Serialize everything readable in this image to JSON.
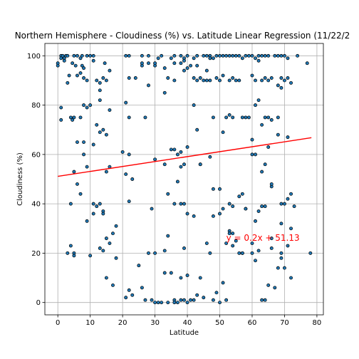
{
  "chart_data": {
    "type": "scatter",
    "title": "Northern Hemisphere - Cloudiness (%) vs. Latitude Linear Regression (11/22/2",
    "xlabel": "Latitude",
    "ylabel": "Cloudiness (%)",
    "xlim": [
      -4,
      82
    ],
    "ylim": [
      -5,
      105
    ],
    "xticks": [
      0,
      10,
      20,
      30,
      40,
      50,
      60,
      70,
      80
    ],
    "yticks": [
      0,
      20,
      40,
      60,
      80,
      100
    ],
    "grid": true,
    "point_color": "#1f77b4",
    "point_edge_color": "#000000",
    "regression_line": {
      "slope": 0.2,
      "intercept": 51.13,
      "x_range": [
        0,
        78.3
      ],
      "color": "#ff0000"
    },
    "annotation": {
      "text": "y = 0.2x + 51.13",
      "x": 52,
      "y": 25,
      "color": "#ff0000"
    },
    "points": [
      [
        0,
        97
      ],
      [
        0,
        96
      ],
      [
        1,
        100
      ],
      [
        1,
        99
      ],
      [
        1.5,
        100
      ],
      [
        2,
        99
      ],
      [
        2.5,
        100
      ],
      [
        3,
        100
      ],
      [
        5,
        100
      ],
      [
        6,
        100
      ],
      [
        7,
        99
      ],
      [
        7.5,
        100
      ],
      [
        10,
        100
      ],
      [
        11,
        98
      ],
      [
        21,
        100
      ],
      [
        22,
        100
      ],
      [
        26,
        100
      ],
      [
        28,
        100
      ],
      [
        32,
        100
      ],
      [
        36,
        100
      ],
      [
        38,
        100
      ],
      [
        40,
        100
      ],
      [
        42,
        99
      ],
      [
        43,
        100
      ],
      [
        45,
        100
      ],
      [
        46,
        100
      ],
      [
        47,
        100
      ],
      [
        48,
        99
      ],
      [
        49,
        100
      ],
      [
        50,
        100
      ],
      [
        51,
        100
      ],
      [
        52,
        100
      ],
      [
        53,
        100
      ],
      [
        54,
        100
      ],
      [
        55,
        100
      ],
      [
        56,
        100
      ],
      [
        58,
        100
      ],
      [
        60,
        100
      ],
      [
        61,
        99
      ],
      [
        62,
        100
      ],
      [
        63,
        100
      ],
      [
        64,
        100
      ],
      [
        65,
        100
      ],
      [
        67,
        100
      ],
      [
        68,
        100
      ],
      [
        69,
        100
      ],
      [
        70,
        100
      ],
      [
        71,
        99
      ],
      [
        74,
        100
      ],
      [
        2,
        98
      ],
      [
        3.5,
        92
      ],
      [
        4.5,
        97
      ],
      [
        5.5,
        96
      ],
      [
        6,
        92
      ],
      [
        7,
        93
      ],
      [
        7.5,
        96
      ],
      [
        8,
        95
      ],
      [
        8,
        91
      ],
      [
        9,
        100
      ],
      [
        9,
        90
      ],
      [
        12,
        90
      ],
      [
        13,
        89
      ],
      [
        14,
        91
      ],
      [
        14.5,
        97
      ],
      [
        15,
        90
      ],
      [
        16,
        94
      ],
      [
        22,
        91
      ],
      [
        24,
        91
      ],
      [
        26,
        96
      ],
      [
        28,
        97
      ],
      [
        30,
        96
      ],
      [
        31,
        99
      ],
      [
        33,
        95
      ],
      [
        34,
        91
      ],
      [
        36,
        97
      ],
      [
        38,
        97
      ],
      [
        39,
        99
      ],
      [
        39,
        94
      ],
      [
        41,
        96
      ],
      [
        42,
        91
      ],
      [
        43,
        90
      ],
      [
        44,
        91
      ],
      [
        45,
        90
      ],
      [
        46,
        94
      ],
      [
        47,
        99
      ],
      [
        49,
        91
      ],
      [
        50,
        90
      ],
      [
        51,
        92
      ],
      [
        53,
        90
      ],
      [
        54,
        91
      ],
      [
        55,
        90
      ],
      [
        56,
        90
      ],
      [
        57,
        99
      ],
      [
        59,
        100
      ],
      [
        60,
        92
      ],
      [
        61,
        90
      ],
      [
        62,
        98
      ],
      [
        63,
        90
      ],
      [
        64,
        91
      ],
      [
        65,
        90
      ],
      [
        66,
        91
      ],
      [
        68,
        88
      ],
      [
        69,
        91
      ],
      [
        70,
        90
      ],
      [
        71,
        91
      ],
      [
        72,
        89
      ],
      [
        77,
        97
      ],
      [
        43,
        96
      ],
      [
        35,
        99
      ],
      [
        3,
        89
      ],
      [
        7,
        75
      ],
      [
        8,
        80
      ],
      [
        9,
        79
      ],
      [
        10,
        80
      ],
      [
        11,
        100
      ],
      [
        13,
        82
      ],
      [
        13,
        86
      ],
      [
        14,
        70
      ],
      [
        16,
        78
      ],
      [
        21,
        81
      ],
      [
        22,
        75
      ],
      [
        26,
        97
      ],
      [
        27,
        75
      ],
      [
        28,
        88
      ],
      [
        30,
        97
      ],
      [
        33,
        85
      ],
      [
        36,
        90
      ],
      [
        39,
        98
      ],
      [
        40,
        95
      ],
      [
        42,
        80
      ],
      [
        43,
        70
      ],
      [
        46,
        90
      ],
      [
        47,
        90
      ],
      [
        48,
        75
      ],
      [
        52,
        75
      ],
      [
        53,
        76
      ],
      [
        54,
        75
      ],
      [
        57,
        75
      ],
      [
        58,
        75
      ],
      [
        59,
        75
      ],
      [
        61,
        80
      ],
      [
        62,
        82
      ],
      [
        63,
        72
      ],
      [
        64,
        75
      ],
      [
        65,
        75
      ],
      [
        66,
        74
      ],
      [
        68,
        75
      ],
      [
        69,
        87
      ],
      [
        71,
        67
      ],
      [
        1,
        74
      ],
      [
        1,
        79
      ],
      [
        4,
        75
      ],
      [
        4.5,
        74
      ],
      [
        5,
        75
      ],
      [
        6,
        65
      ],
      [
        8,
        65
      ],
      [
        8,
        60
      ],
      [
        9,
        55
      ],
      [
        11,
        64
      ],
      [
        12,
        72
      ],
      [
        13,
        69
      ],
      [
        15,
        68
      ],
      [
        16,
        55
      ],
      [
        20,
        61
      ],
      [
        22,
        60
      ],
      [
        30,
        58
      ],
      [
        36,
        62
      ],
      [
        37,
        60
      ],
      [
        38,
        61
      ],
      [
        38,
        55
      ],
      [
        39,
        56
      ],
      [
        40,
        63
      ],
      [
        44,
        56
      ],
      [
        47,
        59
      ],
      [
        48,
        46
      ],
      [
        50,
        46
      ],
      [
        51,
        69
      ],
      [
        53,
        40
      ],
      [
        54,
        39
      ],
      [
        56,
        43
      ],
      [
        57,
        44
      ],
      [
        58,
        38
      ],
      [
        60,
        60
      ],
      [
        60,
        66
      ],
      [
        61,
        60
      ],
      [
        63,
        53
      ],
      [
        64,
        56
      ],
      [
        65,
        63
      ],
      [
        66,
        47
      ],
      [
        66,
        48
      ],
      [
        68,
        68
      ],
      [
        69,
        40
      ],
      [
        70,
        40
      ],
      [
        71,
        42
      ],
      [
        72,
        44
      ],
      [
        73,
        39
      ],
      [
        62,
        37
      ],
      [
        4,
        40
      ],
      [
        5,
        53
      ],
      [
        6,
        48
      ],
      [
        7,
        44
      ],
      [
        9,
        33
      ],
      [
        11,
        36
      ],
      [
        11,
        40
      ],
      [
        12,
        39
      ],
      [
        13,
        40
      ],
      [
        14,
        37
      ],
      [
        14,
        36
      ],
      [
        15,
        26
      ],
      [
        15,
        53
      ],
      [
        17,
        28
      ],
      [
        18,
        31
      ],
      [
        21,
        52
      ],
      [
        22,
        41
      ],
      [
        23,
        50
      ],
      [
        29,
        38
      ],
      [
        33,
        56
      ],
      [
        34,
        44
      ],
      [
        35,
        62
      ],
      [
        36,
        40
      ],
      [
        37,
        49
      ],
      [
        38,
        40
      ],
      [
        39,
        40
      ],
      [
        40,
        36
      ],
      [
        42,
        35
      ],
      [
        44,
        56
      ],
      [
        48,
        35
      ],
      [
        50,
        36
      ],
      [
        51,
        38
      ],
      [
        53,
        29
      ],
      [
        54,
        28
      ],
      [
        55,
        25
      ],
      [
        57,
        20
      ],
      [
        58,
        38
      ],
      [
        60,
        24
      ],
      [
        61,
        33
      ],
      [
        63,
        39
      ],
      [
        64,
        39
      ],
      [
        66,
        26
      ],
      [
        69,
        32
      ],
      [
        72,
        30
      ],
      [
        3,
        20
      ],
      [
        4,
        23
      ],
      [
        5,
        20
      ],
      [
        5,
        19
      ],
      [
        10,
        19
      ],
      [
        13,
        22
      ],
      [
        14,
        21
      ],
      [
        15,
        10
      ],
      [
        16,
        24
      ],
      [
        17,
        7
      ],
      [
        18,
        18
      ],
      [
        21,
        2
      ],
      [
        22,
        5
      ],
      [
        23,
        3
      ],
      [
        25,
        15
      ],
      [
        26,
        6
      ],
      [
        27,
        1
      ],
      [
        28,
        20
      ],
      [
        29,
        1
      ],
      [
        30,
        20
      ],
      [
        31,
        0
      ],
      [
        32,
        0
      ],
      [
        33,
        21
      ],
      [
        33,
        12
      ],
      [
        34,
        27
      ],
      [
        35,
        12
      ],
      [
        36,
        1
      ],
      [
        37,
        0
      ],
      [
        38,
        1
      ],
      [
        38,
        10
      ],
      [
        39,
        22
      ],
      [
        39,
        1
      ],
      [
        40,
        11
      ],
      [
        40,
        0
      ],
      [
        41,
        1
      ],
      [
        42,
        1
      ],
      [
        43,
        3
      ],
      [
        44,
        10
      ],
      [
        45,
        2
      ],
      [
        46,
        24
      ],
      [
        47,
        20
      ],
      [
        48,
        1
      ],
      [
        49,
        4
      ],
      [
        50,
        0
      ],
      [
        51,
        8
      ],
      [
        52,
        24
      ],
      [
        53,
        28
      ],
      [
        54,
        23
      ],
      [
        56,
        20
      ],
      [
        57,
        20
      ],
      [
        60,
        20
      ],
      [
        61,
        17
      ],
      [
        62,
        21
      ],
      [
        63,
        1
      ],
      [
        64,
        1
      ],
      [
        65,
        7
      ],
      [
        66,
        22
      ],
      [
        67,
        6
      ],
      [
        68,
        14
      ],
      [
        69,
        18
      ],
      [
        69,
        20
      ],
      [
        70,
        14
      ],
      [
        71,
        23
      ],
      [
        72,
        10
      ],
      [
        78,
        20
      ],
      [
        52,
        1
      ],
      [
        30,
        0
      ],
      [
        36,
        0
      ],
      [
        34,
        0
      ]
    ]
  }
}
